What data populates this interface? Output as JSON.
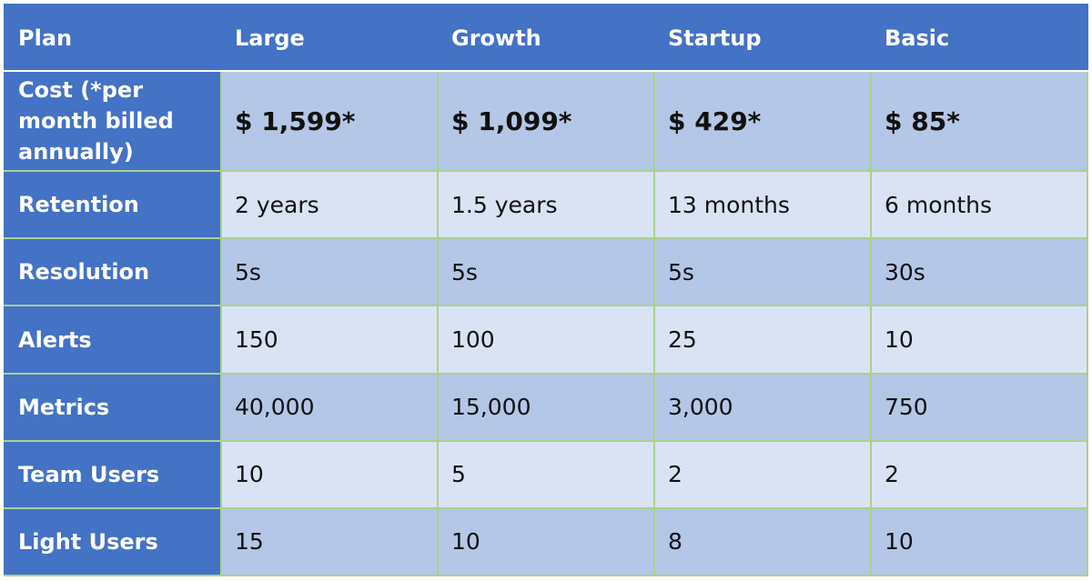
{
  "table": {
    "header": {
      "corner": "Plan",
      "plans": [
        "Large",
        "Growth",
        "Startup",
        "Basic"
      ]
    },
    "rows": [
      {
        "label": "Cost (*per month billed annually)",
        "values": [
          "$ 1,599*",
          "$ 1,099*",
          "$ 429*",
          "$ 85*"
        ]
      },
      {
        "label": "Retention",
        "values": [
          "2 years",
          "1.5 years",
          "13 months",
          "6 months"
        ]
      },
      {
        "label": "Resolution",
        "values": [
          "5s",
          "5s",
          "5s",
          "30s"
        ]
      },
      {
        "label": "Alerts",
        "values": [
          "150",
          "100",
          "25",
          "10"
        ]
      },
      {
        "label": "Metrics",
        "values": [
          "40,000",
          "15,000",
          "3,000",
          "750"
        ]
      },
      {
        "label": "Team Users",
        "values": [
          "10",
          "5",
          "2",
          "2"
        ]
      },
      {
        "label": "Light Users",
        "values": [
          "15",
          "10",
          "8",
          "10"
        ]
      }
    ]
  },
  "colors": {
    "header_blue": "#4472c4",
    "row_dark": "#b4c7e7",
    "row_light": "#dae3f3",
    "grid_green": "#a9d18e"
  }
}
